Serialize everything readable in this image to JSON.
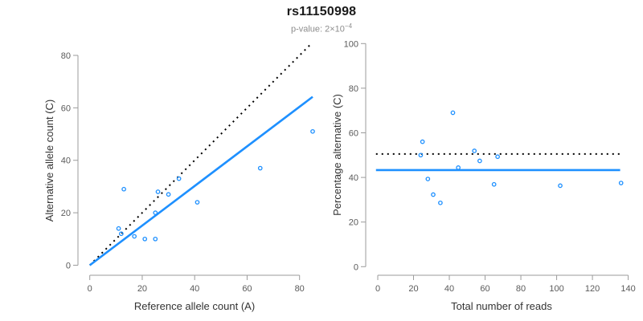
{
  "header": {
    "title": "rs11150998",
    "pvalue_text": "p-value: 2×10",
    "pvalue_exponent": "−4"
  },
  "colors": {
    "accent_blue": "#1E90FF",
    "dotted_black": "#000000",
    "axis_line": "#9b9b9b",
    "tick_label": "#5a5a5a",
    "axis_title": "#333333",
    "title": "#1a1a1a",
    "subtitle": "#8c8c8c"
  },
  "chart_data": [
    {
      "type": "scatter",
      "name": "allele-counts",
      "xlabel": "Reference allele count (A)",
      "ylabel": "Alternative allele count (C)",
      "xlim": [
        0,
        80
      ],
      "ylim": [
        0,
        80
      ],
      "xticks": [
        0,
        20,
        40,
        60,
        80
      ],
      "yticks": [
        0,
        20,
        40,
        60,
        80
      ],
      "grid": false,
      "legend": "none",
      "point_color": "#1E90FF",
      "points": [
        [
          11,
          14
        ],
        [
          12,
          12
        ],
        [
          13,
          29
        ],
        [
          17,
          11
        ],
        [
          21,
          10
        ],
        [
          25,
          10
        ],
        [
          25,
          20
        ],
        [
          26,
          28
        ],
        [
          30,
          27
        ],
        [
          34,
          33
        ],
        [
          41,
          24
        ],
        [
          65,
          37
        ],
        [
          85,
          51
        ]
      ],
      "lines": [
        {
          "name": "identity-line",
          "style": "dotted",
          "color": "#000000",
          "from": [
            0,
            0
          ],
          "to": [
            84,
            84
          ]
        },
        {
          "name": "fit-line",
          "style": "solid",
          "color": "#1E90FF",
          "from": [
            0,
            0
          ],
          "to": [
            85,
            64.2
          ]
        }
      ]
    },
    {
      "type": "scatter",
      "name": "percentage-vs-reads",
      "xlabel": "Total number of reads",
      "ylabel": "Percentage alternative (C)",
      "xlim": [
        0,
        140
      ],
      "ylim": [
        0,
        100
      ],
      "xticks": [
        0,
        20,
        40,
        60,
        80,
        100,
        120,
        140
      ],
      "yticks": [
        0,
        20,
        40,
        60,
        80,
        100
      ],
      "grid": false,
      "legend": "none",
      "point_color": "#1E90FF",
      "points": [
        [
          25,
          56
        ],
        [
          24,
          50
        ],
        [
          42,
          69
        ],
        [
          28,
          39.3
        ],
        [
          31,
          32.3
        ],
        [
          35,
          28.6
        ],
        [
          45,
          44.4
        ],
        [
          54,
          51.9
        ],
        [
          57,
          47.4
        ],
        [
          67,
          49.3
        ],
        [
          65,
          36.9
        ],
        [
          102,
          36.3
        ],
        [
          136,
          37.5
        ]
      ],
      "lines": [
        {
          "name": "expected-line",
          "style": "dotted",
          "color": "#000000",
          "from": [
            -1,
            50.5
          ],
          "to": [
            135.5,
            50.5
          ]
        },
        {
          "name": "mean-line",
          "style": "solid",
          "color": "#1E90FF",
          "from": [
            -1,
            43.3
          ],
          "to": [
            135.5,
            43.3
          ]
        }
      ]
    }
  ]
}
